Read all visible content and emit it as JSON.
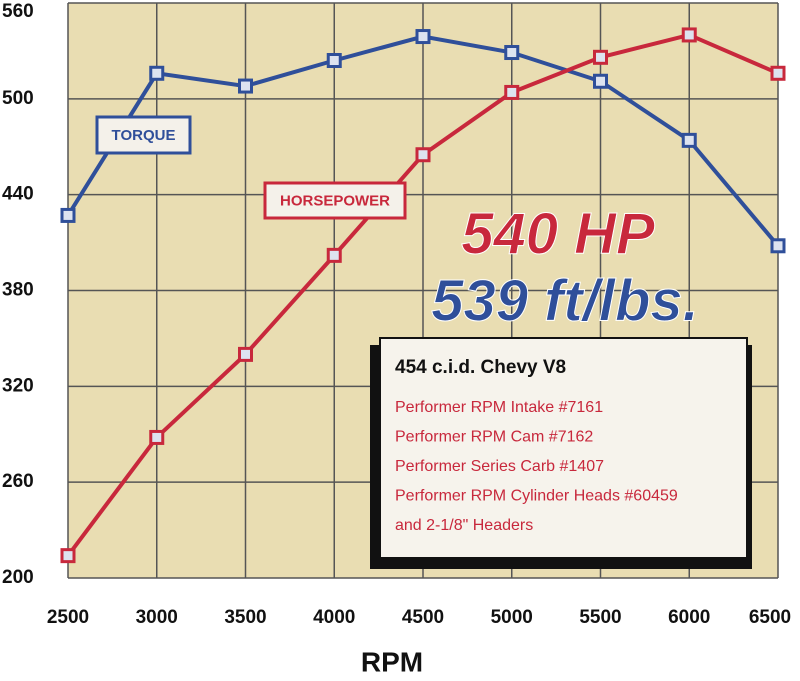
{
  "chart_data": {
    "type": "line",
    "x": [
      2500,
      3000,
      3500,
      4000,
      4500,
      5000,
      5500,
      6000,
      6500
    ],
    "xlim": [
      2500,
      6500
    ],
    "xticks": [
      2500,
      3000,
      3500,
      4000,
      4500,
      5000,
      5500,
      6000,
      6500
    ],
    "ylim": [
      200,
      560
    ],
    "yticks": [
      200,
      260,
      320,
      380,
      440,
      500,
      560
    ],
    "xlabel": "RPM",
    "grid": true,
    "series": [
      {
        "name": "TORQUE",
        "color": "#2f4f9a",
        "values": [
          427,
          516,
          508,
          524,
          539,
          529,
          511,
          474,
          408
        ]
      },
      {
        "name": "HORSEPOWER",
        "color": "#c8283c",
        "values": [
          214,
          288,
          340,
          402,
          465,
          504,
          526,
          540,
          516
        ]
      }
    ],
    "annotations": [
      "540 HP",
      "539 ft/lbs."
    ],
    "info_box": {
      "title": "454 c.i.d. Chevy V8",
      "lines": [
        "Performer RPM Intake #7161",
        "Performer RPM Cam #7162",
        "Performer Series Carb #1407",
        "Performer RPM Cylinder Heads #60459",
        "and 2-1/8\" Headers"
      ]
    }
  }
}
